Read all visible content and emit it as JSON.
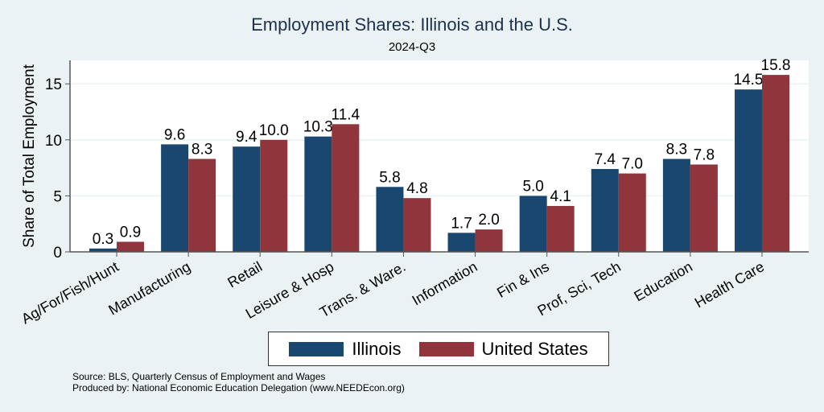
{
  "chart_data": {
    "type": "bar",
    "title": "Employment Shares: Illinois and the U.S.",
    "subtitle": "2024-Q3",
    "xlabel": "",
    "ylabel": "Share of Total Employment",
    "ylim": [
      0,
      17.1
    ],
    "yticks": [
      0,
      5,
      10,
      15
    ],
    "grid": true,
    "legend_position": "bottom",
    "categories": [
      "Ag/For/Fish/Hunt",
      "Manufacturing",
      "Retail",
      "Leisure & Hosp",
      "Trans. & Ware.",
      "Information",
      "Fin & Ins",
      "Prof, Sci, Tech",
      "Education",
      "Health Care"
    ],
    "series": [
      {
        "name": "Illinois",
        "color": "#1a476f",
        "values": [
          0.3,
          9.6,
          9.4,
          10.3,
          5.8,
          1.7,
          5.0,
          7.4,
          8.3,
          14.5
        ]
      },
      {
        "name": "United States",
        "color": "#90353b",
        "values": [
          0.9,
          8.3,
          10.0,
          11.4,
          4.8,
          2.0,
          4.1,
          7.0,
          7.8,
          15.8
        ]
      }
    ]
  },
  "notes": {
    "source": "Source: BLS, Quarterly Census of Employment and Wages",
    "produced": "Produced by: National Economic Education Delegation (www.NEEDEcon.org)"
  }
}
